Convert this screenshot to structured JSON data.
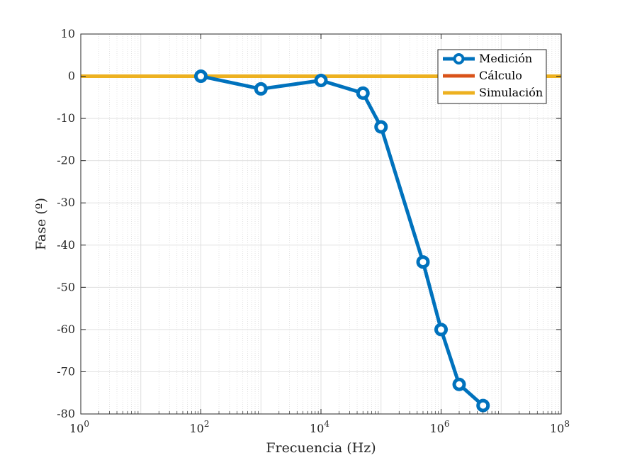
{
  "chart_data": {
    "type": "line",
    "xscale": "log",
    "xlabel": "Frecuencia (Hz)",
    "ylabel": "Fase (º)",
    "xlim": [
      1,
      100000000
    ],
    "ylim": [
      -80,
      10
    ],
    "x_ticks": [
      {
        "value": 1,
        "base": "10",
        "exp": "0"
      },
      {
        "value": 100,
        "base": "10",
        "exp": "2"
      },
      {
        "value": 10000,
        "base": "10",
        "exp": "4"
      },
      {
        "value": 1000000,
        "base": "10",
        "exp": "6"
      },
      {
        "value": 100000000,
        "base": "10",
        "exp": "8"
      }
    ],
    "y_ticks": [
      {
        "value": 10,
        "label": "10"
      },
      {
        "value": 0,
        "label": "0"
      },
      {
        "value": -10,
        "label": "-10"
      },
      {
        "value": -20,
        "label": "-20"
      },
      {
        "value": -30,
        "label": "-30"
      },
      {
        "value": -40,
        "label": "-40"
      },
      {
        "value": -50,
        "label": "-50"
      },
      {
        "value": -60,
        "label": "-60"
      },
      {
        "value": -70,
        "label": "-70"
      },
      {
        "value": -80,
        "label": "-80"
      }
    ],
    "grid": true,
    "minor_grid": true,
    "legend_position": "top-right",
    "series": [
      {
        "name": "Medición",
        "color": "#0072BD",
        "marker": "circle",
        "x": [
          100,
          1000,
          10000,
          50000,
          100000,
          500000,
          1000000,
          2000000,
          5000000
        ],
        "y": [
          0,
          -3,
          -1,
          -4,
          -12,
          -44,
          -60,
          -73,
          -78
        ]
      },
      {
        "name": "Cálculo",
        "color": "#D95319",
        "marker": "none",
        "x": [
          1,
          100000000
        ],
        "y": [
          0,
          0
        ]
      },
      {
        "name": "Simulación",
        "color": "#EDB120",
        "marker": "none",
        "x": [
          1,
          100000000
        ],
        "y": [
          0,
          0
        ]
      }
    ]
  }
}
